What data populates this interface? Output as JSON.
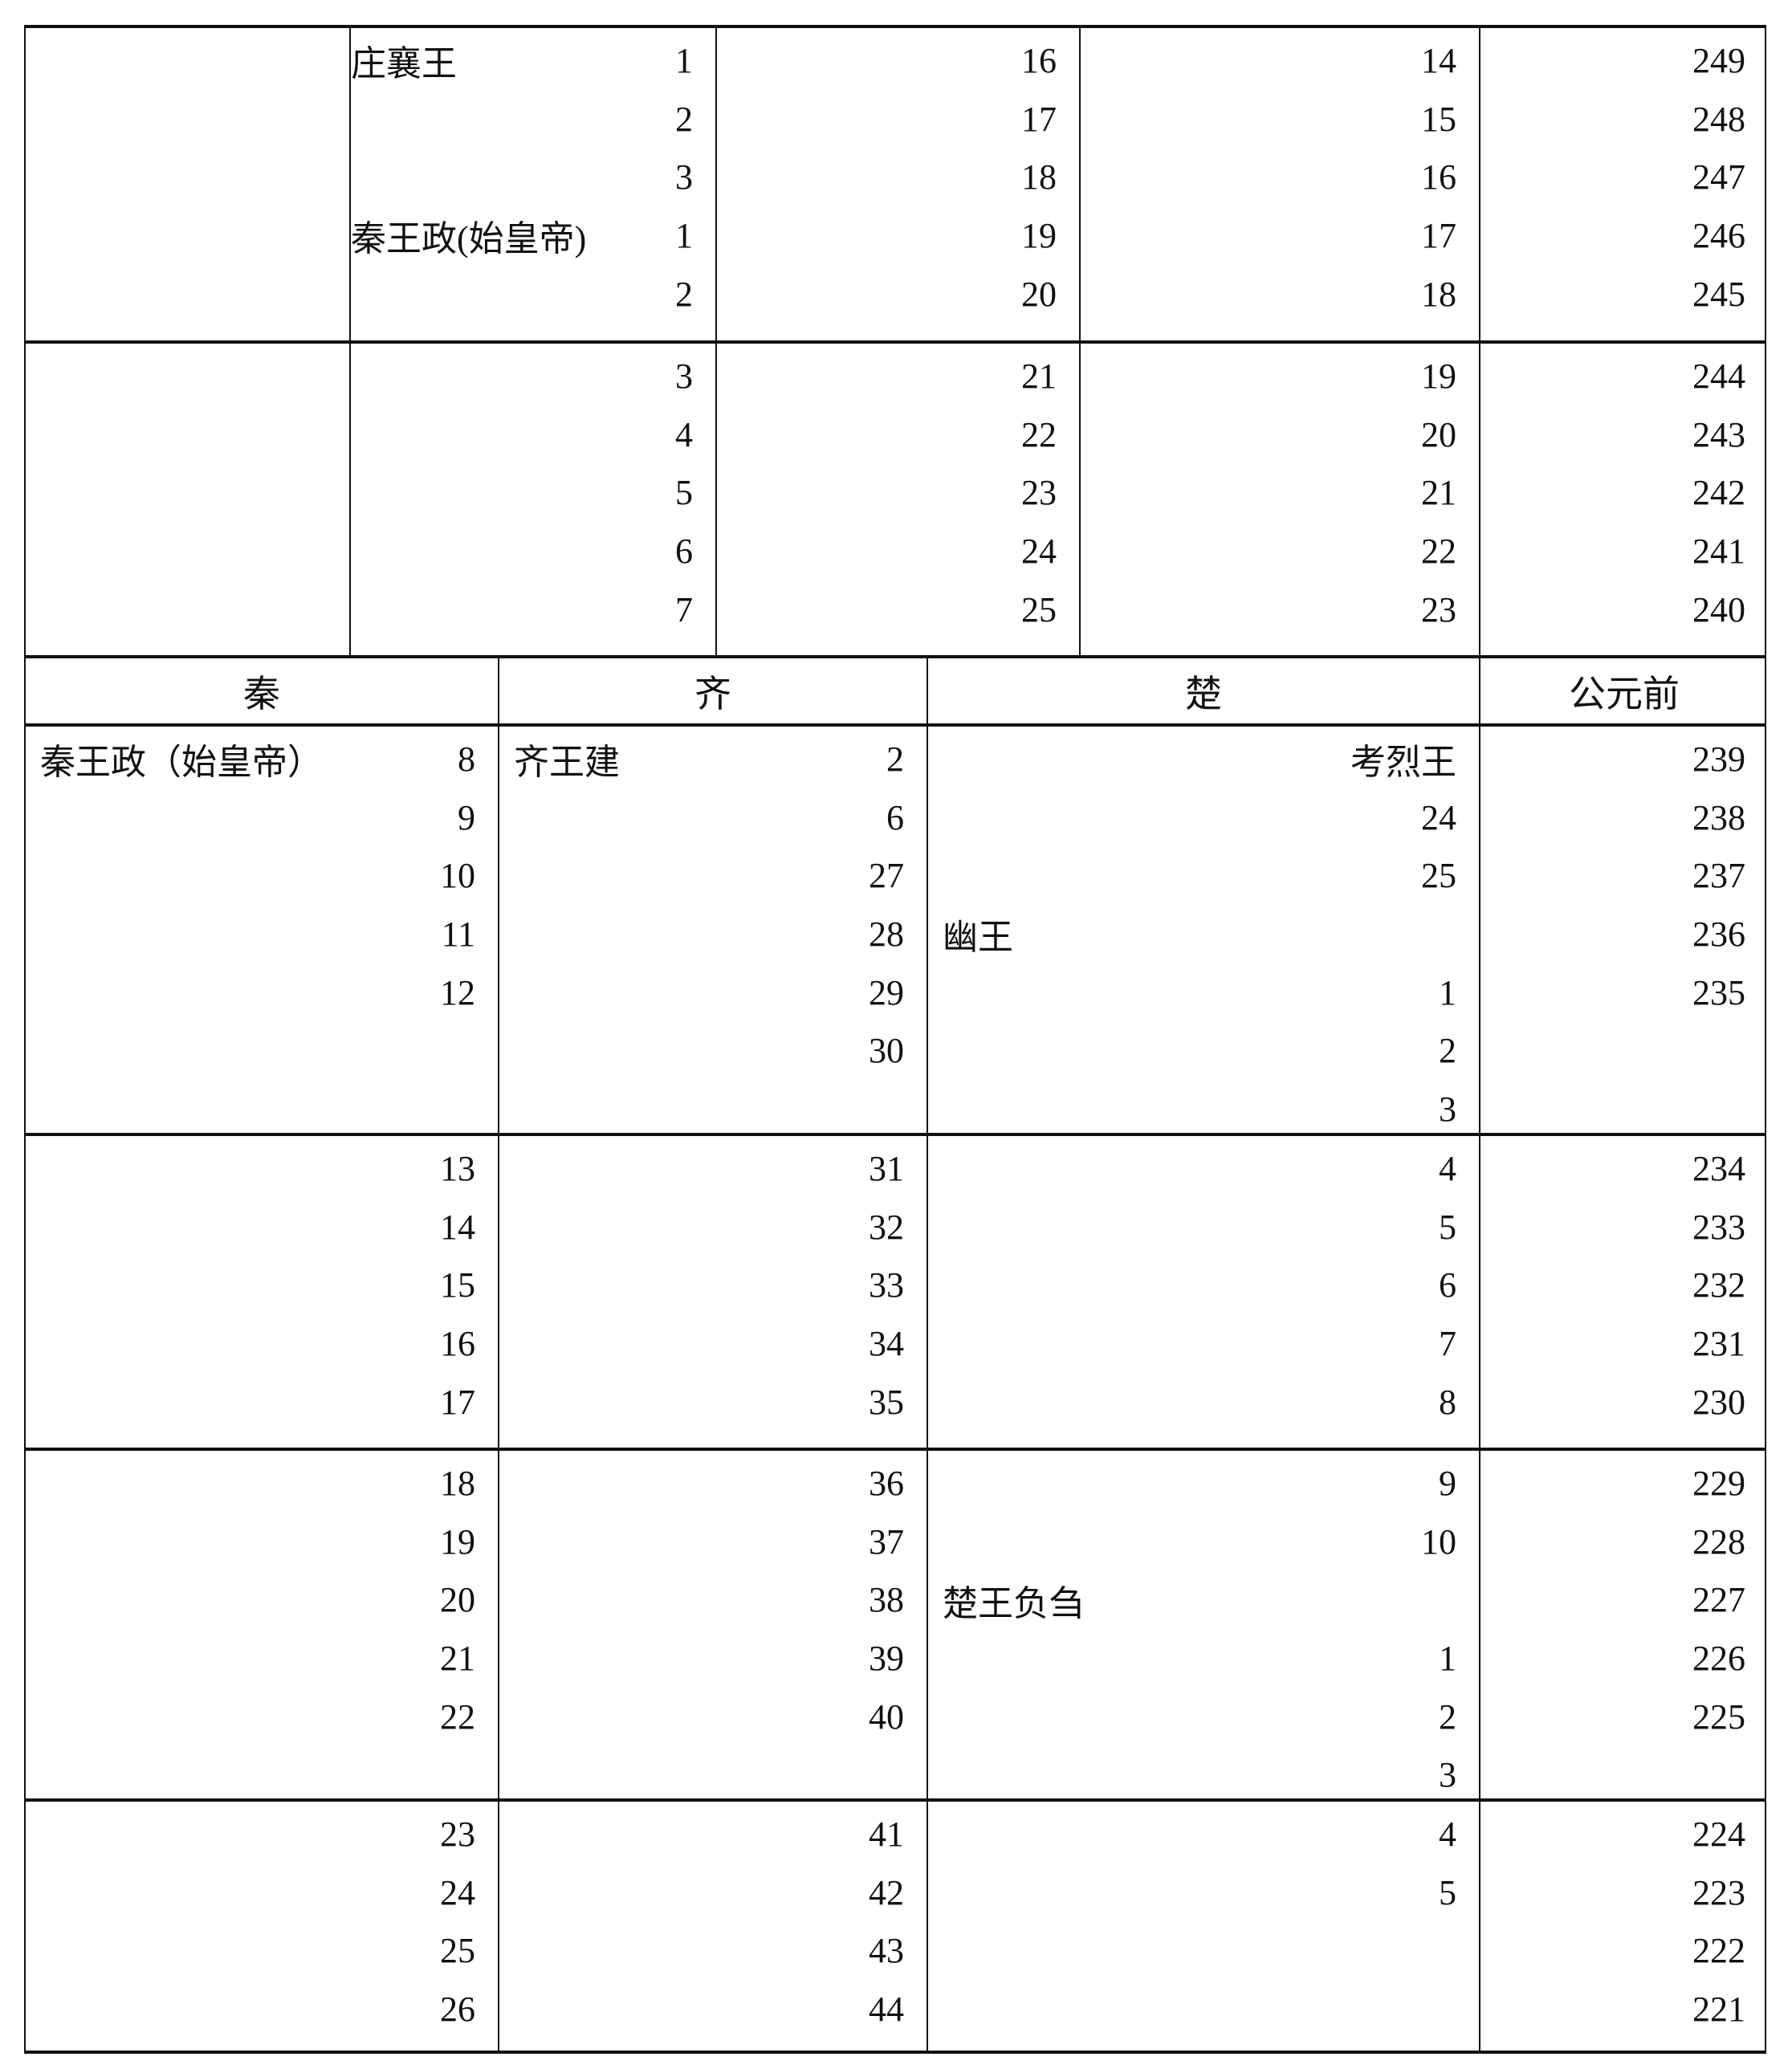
{
  "top_blocks": [
    {
      "cells": [
        {
          "lines": []
        },
        {
          "lines": [
            {
              "left": "庄襄王",
              "right": "1"
            },
            {
              "left": "",
              "right": "2"
            },
            {
              "left": "",
              "right": "3"
            },
            {
              "left": "秦王政(始皇帝)",
              "right": "1"
            },
            {
              "left": "",
              "right": "2"
            }
          ]
        },
        {
          "lines": [
            {
              "right": "16"
            },
            {
              "right": "17"
            },
            {
              "right": "18"
            },
            {
              "right": "19"
            },
            {
              "right": "20"
            }
          ]
        },
        {
          "lines": [
            {
              "right": "14"
            },
            {
              "right": "15"
            },
            {
              "right": "16"
            },
            {
              "right": "17"
            },
            {
              "right": "18"
            }
          ]
        },
        {
          "lines": [
            {
              "right": "249"
            },
            {
              "right": "248"
            },
            {
              "right": "247"
            },
            {
              "right": "246"
            },
            {
              "right": "245"
            }
          ]
        }
      ]
    },
    {
      "cells": [
        {
          "lines": []
        },
        {
          "lines": [
            {
              "right": "3"
            },
            {
              "right": "4"
            },
            {
              "right": "5"
            },
            {
              "right": "6"
            },
            {
              "right": "7"
            }
          ]
        },
        {
          "lines": [
            {
              "right": "21"
            },
            {
              "right": "22"
            },
            {
              "right": "23"
            },
            {
              "right": "24"
            },
            {
              "right": "25"
            }
          ]
        },
        {
          "lines": [
            {
              "right": "19"
            },
            {
              "right": "20"
            },
            {
              "right": "21"
            },
            {
              "right": "22"
            },
            {
              "right": "23"
            }
          ]
        },
        {
          "lines": [
            {
              "right": "244"
            },
            {
              "right": "243"
            },
            {
              "right": "242"
            },
            {
              "right": "241"
            },
            {
              "right": "240"
            }
          ]
        }
      ]
    }
  ],
  "header": [
    "秦",
    "齐",
    "楚",
    "公元前"
  ],
  "bottom_blocks": [
    {
      "cells": [
        {
          "lines": [
            {
              "left": "秦王政（始皇帝）",
              "right": "8"
            },
            {
              "right": "9"
            },
            {
              "right": "10"
            },
            {
              "right": "11"
            },
            {
              "right": "12"
            }
          ]
        },
        {
          "lines": [
            {
              "left": "齐王建",
              "right": "2"
            },
            {
              "right": "6"
            },
            {
              "right": "27"
            },
            {
              "right": "28"
            },
            {
              "right": "29"
            },
            {
              "right": "30"
            }
          ]
        },
        {
          "lines": [
            {
              "right": "考烈王"
            },
            {
              "right": "24"
            },
            {
              "right": "25"
            },
            {
              "left": "幽王"
            },
            {
              "right": "1"
            },
            {
              "right": "2"
            },
            {
              "right": "3"
            }
          ]
        },
        {
          "lines": [
            {
              "right": "239"
            },
            {
              "right": "238"
            },
            {
              "right": "237"
            },
            {
              "right": "236"
            },
            {
              "right": "235"
            }
          ]
        }
      ]
    },
    {
      "cells": [
        {
          "lines": [
            {
              "right": "13"
            },
            {
              "right": "14"
            },
            {
              "right": "15"
            },
            {
              "right": "16"
            },
            {
              "right": "17"
            }
          ]
        },
        {
          "lines": [
            {
              "right": "31"
            },
            {
              "right": "32"
            },
            {
              "right": "33"
            },
            {
              "right": "34"
            },
            {
              "right": "35"
            }
          ]
        },
        {
          "lines": [
            {
              "right": "4"
            },
            {
              "right": "5"
            },
            {
              "right": "6"
            },
            {
              "right": "7"
            },
            {
              "right": "8"
            }
          ]
        },
        {
          "lines": [
            {
              "right": "234"
            },
            {
              "right": "233"
            },
            {
              "right": "232"
            },
            {
              "right": "231"
            },
            {
              "right": "230"
            }
          ]
        }
      ]
    },
    {
      "cells": [
        {
          "lines": [
            {
              "right": "18"
            },
            {
              "right": "19"
            },
            {
              "right": "20"
            },
            {
              "right": "21"
            },
            {
              "right": "22"
            }
          ]
        },
        {
          "lines": [
            {
              "right": "36"
            },
            {
              "right": "37"
            },
            {
              "right": "38"
            },
            {
              "right": "39"
            },
            {
              "right": "40"
            }
          ]
        },
        {
          "lines": [
            {
              "right": "9"
            },
            {
              "right": "10"
            },
            {
              "left": "楚王负刍"
            },
            {
              "right": "1"
            },
            {
              "right": "2"
            },
            {
              "right": "3"
            }
          ]
        },
        {
          "lines": [
            {
              "right": "229"
            },
            {
              "right": "228"
            },
            {
              "right": "227"
            },
            {
              "right": "226"
            },
            {
              "right": "225"
            }
          ]
        }
      ]
    },
    {
      "cells": [
        {
          "lines": [
            {
              "right": "23"
            },
            {
              "right": "24"
            },
            {
              "right": "25"
            },
            {
              "right": "26"
            }
          ]
        },
        {
          "lines": [
            {
              "right": "41"
            },
            {
              "right": "42"
            },
            {
              "right": "43"
            },
            {
              "right": "44"
            }
          ]
        },
        {
          "lines": [
            {
              "right": "4"
            },
            {
              "right": "5"
            }
          ]
        },
        {
          "lines": [
            {
              "right": "224"
            },
            {
              "right": "223"
            },
            {
              "right": "222"
            },
            {
              "right": "221"
            }
          ]
        }
      ]
    }
  ]
}
